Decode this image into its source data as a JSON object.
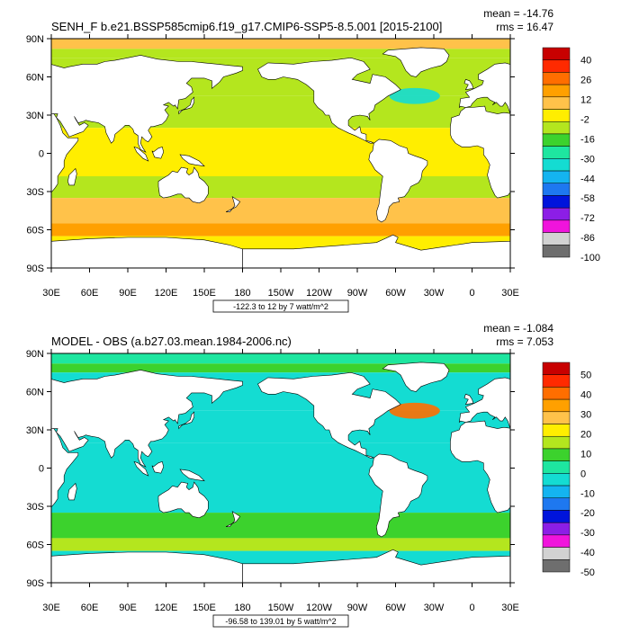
{
  "chart_data": [
    {
      "type": "heatmap",
      "title": "SENH_F b.e21.BSSP585cmip6.f19_g17.CMIP6-SSP5-8.5.001 [2015-2100]",
      "stats": {
        "mean_text": "mean = -14.76",
        "rms_text": "rms = 16.47"
      },
      "lat_ticks": [
        "90N",
        "60N",
        "30N",
        "0",
        "30S",
        "60S",
        "90S"
      ],
      "lon_ticks": [
        "30E",
        "60E",
        "90E",
        "120E",
        "150E",
        "180",
        "150W",
        "120W",
        "90W",
        "60W",
        "30W",
        "0",
        "30E"
      ],
      "contour_info": "-122.3 to 12 by 7 watt/m^2",
      "legend": {
        "labels": [
          "40",
          "26",
          "12",
          "-2",
          "-16",
          "-30",
          "-44",
          "-58",
          "-72",
          "-86",
          "-100"
        ],
        "colors": [
          "#c80000",
          "#ff2a00",
          "#ff6e00",
          "#ffa000",
          "#ffc24a",
          "#ffee00",
          "#b4e61e",
          "#3cd22d",
          "#1ee6a0",
          "#14dcd2",
          "#14b4f0",
          "#1e78f0",
          "#0014dc",
          "#8c1ee6",
          "#f014dc",
          "#d2d2d2",
          "#6e6e6e"
        ]
      },
      "zone_colors": {
        "arctic": "#ffc24a",
        "arctic_fringe": "#b4e61e",
        "tropics": "#ffee00",
        "subtropics": "#b4e61e",
        "southern": "#ffc24a",
        "southern_deep": "#ffa000",
        "antarctic_edge": "#ffee00",
        "gulf_stream": "#14dcd2"
      }
    },
    {
      "type": "heatmap",
      "title": "MODEL - OBS (a.b27.03.mean.1984-2006.nc)",
      "stats": {
        "mean_text": "mean = -1.084",
        "rms_text": "rms = 7.053"
      },
      "lat_ticks": [
        "90N",
        "60N",
        "30N",
        "0",
        "30S",
        "60S",
        "90S"
      ],
      "lon_ticks": [
        "30E",
        "60E",
        "90E",
        "120E",
        "150E",
        "180",
        "150W",
        "120W",
        "90W",
        "60W",
        "30W",
        "0",
        "30E"
      ],
      "contour_info": "-96.58 to 139.01 by 5 watt/m^2",
      "legend": {
        "labels": [
          "50",
          "40",
          "30",
          "20",
          "10",
          "0",
          "-10",
          "-20",
          "-30",
          "-40",
          "-50"
        ],
        "colors": [
          "#c80000",
          "#ff2a00",
          "#ff6e00",
          "#ffa000",
          "#ffc24a",
          "#ffee00",
          "#b4e61e",
          "#3cd22d",
          "#1ee6a0",
          "#14dcd2",
          "#14b4f0",
          "#1e78f0",
          "#0014dc",
          "#8c1ee6",
          "#f014dc",
          "#d2d2d2",
          "#6e6e6e"
        ]
      },
      "zone_colors": {
        "arctic": "#1ee6a0",
        "arctic_fringe": "#3cd22d",
        "tropics": "#14dcd2",
        "subtropics": "#14dcd2",
        "southern": "#3cd22d",
        "southern_deep": "#b4e61e",
        "antarctic_edge": "#14dcd2",
        "gulf_stream": "#ff6e00"
      }
    }
  ]
}
